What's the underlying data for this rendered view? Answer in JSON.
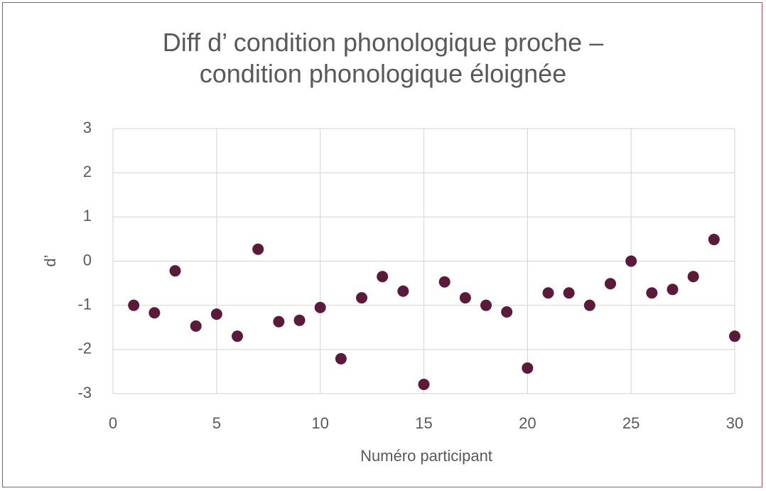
{
  "chart_data": {
    "type": "scatter",
    "title": "Diff d’ condition phonologique proche – condition phonologique éloignée",
    "x_label": "Numéro participant",
    "y_label": "d’",
    "x": [
      1,
      2,
      3,
      4,
      5,
      6,
      7,
      8,
      9,
      10,
      11,
      12,
      13,
      14,
      15,
      16,
      17,
      18,
      19,
      20,
      21,
      22,
      23,
      24,
      25,
      26,
      27,
      28,
      29,
      30
    ],
    "values": [
      -1.0,
      -1.17,
      -0.22,
      -1.47,
      -1.2,
      -1.7,
      0.27,
      -1.37,
      -1.34,
      -1.05,
      -2.21,
      -0.83,
      -0.35,
      -0.68,
      -2.79,
      -0.47,
      -0.83,
      -1.0,
      -1.15,
      -2.42,
      -0.72,
      -0.72,
      -1.0,
      -0.51,
      0.0,
      -0.72,
      -0.64,
      -0.35,
      0.49,
      -1.7
    ],
    "color": "#5c1a3b",
    "xlim": [
      0,
      30
    ],
    "xticks": [
      0,
      5,
      10,
      15,
      20,
      25,
      30
    ],
    "ylim": [
      -3,
      3
    ],
    "yticks": [
      3,
      2,
      1,
      0,
      -1,
      -2,
      -3
    ],
    "grid": true
  }
}
